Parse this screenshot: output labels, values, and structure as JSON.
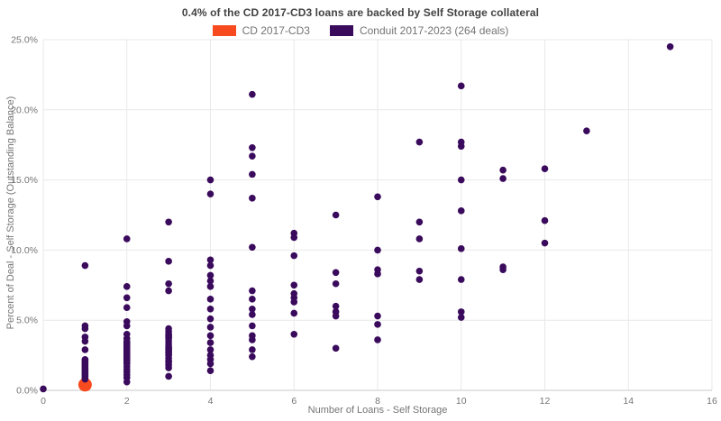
{
  "chart_data": {
    "type": "scatter",
    "title": "0.4% of the CD 2017-CD3 loans are backed by Self Storage collateral",
    "xlabel": "Number of Loans - Self Storage",
    "ylabel": "Percent of Deal - Self Storage (Outstanding Balance)",
    "xlim": [
      0,
      16
    ],
    "ylim": [
      0,
      25
    ],
    "x_ticks": [
      0,
      2,
      4,
      6,
      8,
      10,
      12,
      14,
      16
    ],
    "y_ticks": [
      {
        "value": 0,
        "label": "0.0%"
      },
      {
        "value": 5,
        "label": "5.0%"
      },
      {
        "value": 10,
        "label": "10.0%"
      },
      {
        "value": 15,
        "label": "15.0%"
      },
      {
        "value": 20,
        "label": "20.0%"
      },
      {
        "value": 25,
        "label": "25.0%"
      }
    ],
    "grid": true,
    "legend_position": "top-center",
    "colors": {
      "grid": "#e9e9e9",
      "axis_line": "#c9c9c9",
      "axis_text": "#757575",
      "title_text": "#424242"
    },
    "series": [
      {
        "name": "CD 2017-CD3",
        "color": "#f74a1e",
        "marker_radius": 7.5,
        "points": [
          [
            1,
            0.4
          ]
        ]
      },
      {
        "name": "Conduit 2017-2023 (264 deals)",
        "color": "#3a0a5c",
        "marker_radius": 3.8,
        "points": [
          [
            0,
            0.1
          ],
          [
            1,
            8.9
          ],
          [
            1,
            4.6
          ],
          [
            1,
            4.4
          ],
          [
            1,
            3.8
          ],
          [
            1,
            3.5
          ],
          [
            1,
            2.9
          ],
          [
            1,
            2.2
          ],
          [
            1,
            2.1
          ],
          [
            1,
            2.0
          ],
          [
            1,
            1.9
          ],
          [
            1,
            1.8
          ],
          [
            1,
            1.7
          ],
          [
            1,
            1.6
          ],
          [
            1,
            1.5
          ],
          [
            1,
            1.4
          ],
          [
            1,
            1.3
          ],
          [
            1,
            1.2
          ],
          [
            1,
            1.1
          ],
          [
            1,
            1.0
          ],
          [
            1,
            0.9
          ],
          [
            1,
            0.8
          ],
          [
            2,
            10.8
          ],
          [
            2,
            7.4
          ],
          [
            2,
            6.6
          ],
          [
            2,
            5.9
          ],
          [
            2,
            4.9
          ],
          [
            2,
            4.6
          ],
          [
            2,
            4.0
          ],
          [
            2,
            3.7
          ],
          [
            2,
            3.5
          ],
          [
            2,
            3.4
          ],
          [
            2,
            3.3
          ],
          [
            2,
            3.2
          ],
          [
            2,
            3.1
          ],
          [
            2,
            3.0
          ],
          [
            2,
            2.9
          ],
          [
            2,
            2.8
          ],
          [
            2,
            2.7
          ],
          [
            2,
            2.6
          ],
          [
            2,
            2.5
          ],
          [
            2,
            2.4
          ],
          [
            2,
            2.3
          ],
          [
            2,
            2.2
          ],
          [
            2,
            2.1
          ],
          [
            2,
            2.0
          ],
          [
            2,
            1.9
          ],
          [
            2,
            1.7
          ],
          [
            2,
            1.5
          ],
          [
            2,
            1.3
          ],
          [
            2,
            1.1
          ],
          [
            2,
            0.9
          ],
          [
            2,
            0.6
          ],
          [
            3,
            12.0
          ],
          [
            3,
            9.2
          ],
          [
            3,
            7.6
          ],
          [
            3,
            7.1
          ],
          [
            3,
            4.4
          ],
          [
            3,
            4.2
          ],
          [
            3,
            4.0
          ],
          [
            3,
            3.9
          ],
          [
            3,
            3.8
          ],
          [
            3,
            3.7
          ],
          [
            3,
            3.5
          ],
          [
            3,
            3.3
          ],
          [
            3,
            3.1
          ],
          [
            3,
            3.0
          ],
          [
            3,
            2.9
          ],
          [
            3,
            2.8
          ],
          [
            3,
            2.7
          ],
          [
            3,
            2.6
          ],
          [
            3,
            2.5
          ],
          [
            3,
            2.3
          ],
          [
            3,
            2.1
          ],
          [
            3,
            2.0
          ],
          [
            3,
            1.8
          ],
          [
            3,
            1.6
          ],
          [
            3,
            1.0
          ],
          [
            4,
            15.0
          ],
          [
            4,
            14.0
          ],
          [
            4,
            9.3
          ],
          [
            4,
            8.9
          ],
          [
            4,
            8.2
          ],
          [
            4,
            7.8
          ],
          [
            4,
            7.4
          ],
          [
            4,
            6.5
          ],
          [
            4,
            5.8
          ],
          [
            4,
            5.1
          ],
          [
            4,
            4.5
          ],
          [
            4,
            3.9
          ],
          [
            4,
            3.4
          ],
          [
            4,
            2.9
          ],
          [
            4,
            2.5
          ],
          [
            4,
            2.2
          ],
          [
            4,
            1.9
          ],
          [
            4,
            1.4
          ],
          [
            5,
            21.1
          ],
          [
            5,
            17.3
          ],
          [
            5,
            16.7
          ],
          [
            5,
            15.4
          ],
          [
            5,
            13.7
          ],
          [
            5,
            10.2
          ],
          [
            5,
            7.1
          ],
          [
            5,
            6.5
          ],
          [
            5,
            5.8
          ],
          [
            5,
            5.4
          ],
          [
            5,
            4.6
          ],
          [
            5,
            3.9
          ],
          [
            5,
            3.6
          ],
          [
            5,
            2.9
          ],
          [
            5,
            2.4
          ],
          [
            6,
            11.2
          ],
          [
            6,
            10.9
          ],
          [
            6,
            9.6
          ],
          [
            6,
            7.5
          ],
          [
            6,
            6.9
          ],
          [
            6,
            6.6
          ],
          [
            6,
            6.3
          ],
          [
            6,
            5.5
          ],
          [
            6,
            4.0
          ],
          [
            7,
            12.5
          ],
          [
            7,
            8.4
          ],
          [
            7,
            7.6
          ],
          [
            7,
            6.0
          ],
          [
            7,
            5.6
          ],
          [
            7,
            5.3
          ],
          [
            7,
            3.0
          ],
          [
            8,
            13.8
          ],
          [
            8,
            10.0
          ],
          [
            8,
            8.6
          ],
          [
            8,
            8.3
          ],
          [
            8,
            5.3
          ],
          [
            8,
            4.7
          ],
          [
            8,
            3.6
          ],
          [
            9,
            17.7
          ],
          [
            9,
            12.0
          ],
          [
            9,
            10.8
          ],
          [
            9,
            8.5
          ],
          [
            9,
            7.9
          ],
          [
            10,
            21.7
          ],
          [
            10,
            17.7
          ],
          [
            10,
            17.4
          ],
          [
            10,
            15.0
          ],
          [
            10,
            12.8
          ],
          [
            10,
            10.1
          ],
          [
            10,
            7.9
          ],
          [
            10,
            5.6
          ],
          [
            10,
            5.2
          ],
          [
            11,
            15.7
          ],
          [
            11,
            15.1
          ],
          [
            11,
            8.8
          ],
          [
            11,
            8.6
          ],
          [
            12,
            15.8
          ],
          [
            12,
            12.1
          ],
          [
            12,
            10.5
          ],
          [
            13,
            18.5
          ],
          [
            15,
            24.5
          ]
        ]
      }
    ]
  }
}
